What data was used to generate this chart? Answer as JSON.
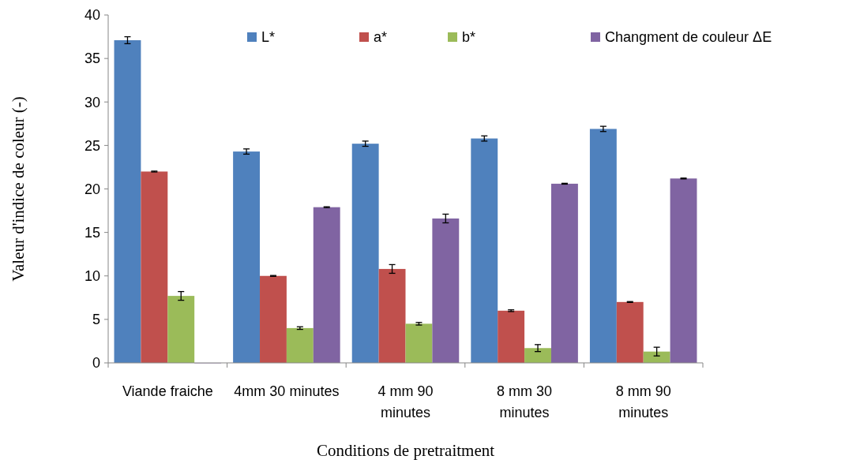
{
  "chart_data": {
    "type": "bar",
    "xlabel": "Conditions de pretraitment",
    "ylabel": "Valeur d'indice de coleur (-)",
    "categories": [
      "Viande fraiche",
      "4mm 30 minutes",
      "4 mm 90\nminutes",
      "8 mm 30\nminutes",
      "8 mm 90\nminutes"
    ],
    "series": [
      {
        "name": "L*",
        "color": "#4f81bd",
        "values": [
          37.1,
          24.3,
          25.2,
          25.8,
          26.9
        ],
        "errors": [
          0.4,
          0.3,
          0.3,
          0.3,
          0.3
        ]
      },
      {
        "name": "a*",
        "color": "#c0504d",
        "values": [
          22.0,
          10.0,
          10.8,
          6.0,
          7.0
        ],
        "errors": [
          0.05,
          0.05,
          0.5,
          0.1,
          0.05
        ]
      },
      {
        "name": "b*",
        "color": "#9bbb59",
        "values": [
          7.7,
          4.0,
          4.5,
          1.7,
          1.3
        ],
        "errors": [
          0.5,
          0.15,
          0.15,
          0.4,
          0.5
        ]
      },
      {
        "name": "Changment de couleur ΔE",
        "color": "#8064a2",
        "values": [
          0,
          17.9,
          16.6,
          20.6,
          21.2
        ],
        "errors": [
          null,
          0.05,
          0.5,
          0.05,
          0.05
        ]
      }
    ],
    "ylim": [
      0,
      40
    ],
    "yticks": [
      0,
      5,
      10,
      15,
      20,
      25,
      30,
      35,
      40
    ],
    "legend": "top",
    "grid": false
  }
}
